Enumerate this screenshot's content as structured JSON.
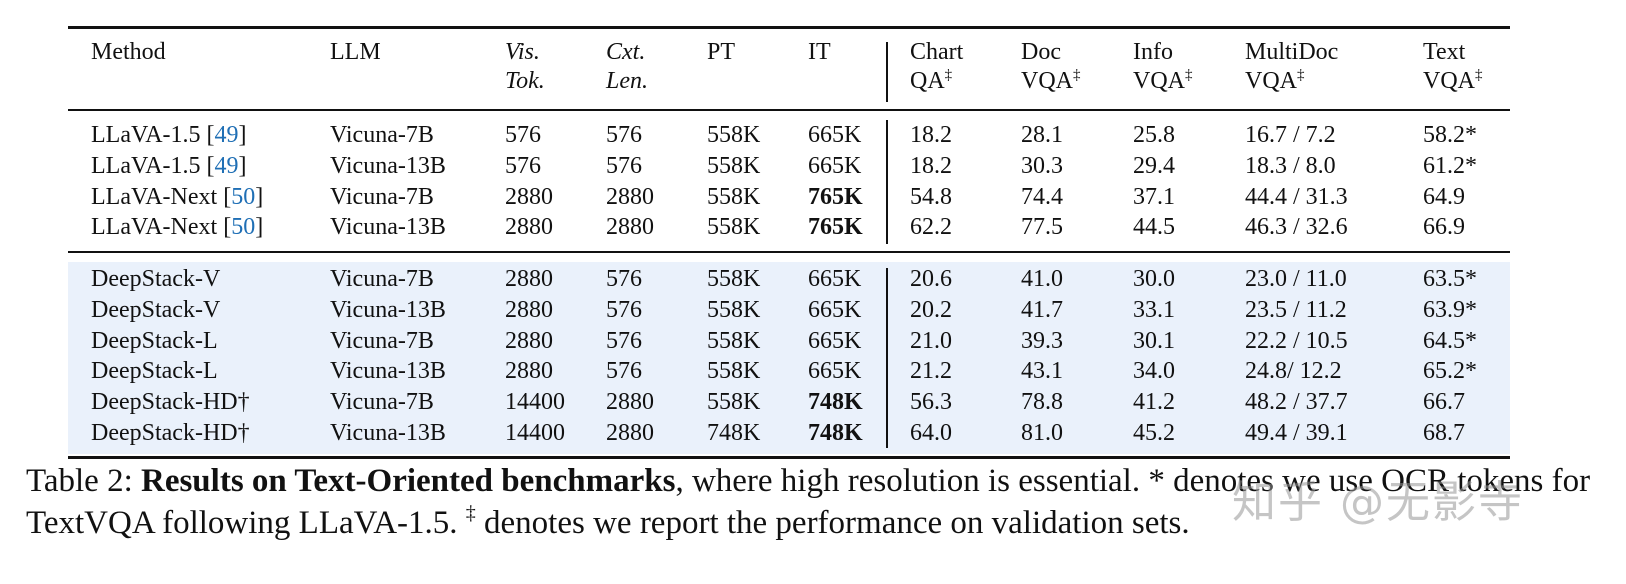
{
  "table": {
    "headers": {
      "method": "Method",
      "llm": "LLM",
      "vis_tok_1": "Vis.",
      "vis_tok_2": "Tok.",
      "cxt_len_1": "Cxt.",
      "cxt_len_2": "Len.",
      "pt": "PT",
      "it": "IT",
      "chartqa_1": "Chart",
      "chartqa_2": "QA",
      "docvqa_1": "Doc",
      "docvqa_2": "VQA",
      "infovqa_1": "Info",
      "infovqa_2": "VQA",
      "multidocvqa_1": "MultiDoc",
      "multidocvqa_2": "VQA",
      "textvqa_1": "Text",
      "textvqa_2": "VQA",
      "dagger_mark": "‡"
    },
    "baseline_rows": [
      {
        "method": "LLaVA-1.5 ",
        "cite": "49",
        "llm": "Vicuna-7B",
        "vis_tok": "576",
        "cxt_len": "576",
        "pt": "558K",
        "it": "665K",
        "it_bold": false,
        "chartqa": "18.2",
        "docvqa": "28.1",
        "infovqa": "25.8",
        "multidocvqa": "16.7 / 7.2",
        "textvqa": "58.2*"
      },
      {
        "method": "LLaVA-1.5 ",
        "cite": "49",
        "llm": "Vicuna-13B",
        "vis_tok": "576",
        "cxt_len": "576",
        "pt": "558K",
        "it": "665K",
        "it_bold": false,
        "chartqa": "18.2",
        "docvqa": "30.3",
        "infovqa": "29.4",
        "multidocvqa": "18.3 / 8.0",
        "textvqa": "61.2*"
      },
      {
        "method": "LLaVA-Next ",
        "cite": "50",
        "llm": "Vicuna-7B",
        "vis_tok": "2880",
        "cxt_len": "2880",
        "pt": "558K",
        "it": "765K",
        "it_bold": true,
        "chartqa": "54.8",
        "docvqa": "74.4",
        "infovqa": "37.1",
        "multidocvqa": "44.4 / 31.3",
        "textvqa": "64.9"
      },
      {
        "method": "LLaVA-Next ",
        "cite": "50",
        "llm": "Vicuna-13B",
        "vis_tok": "2880",
        "cxt_len": "2880",
        "pt": "558K",
        "it": "765K",
        "it_bold": true,
        "chartqa": "62.2",
        "docvqa": "77.5",
        "infovqa": "44.5",
        "multidocvqa": "46.3 / 32.6",
        "textvqa": "66.9"
      }
    ],
    "deepstack_rows": [
      {
        "method": "DeepStack-V",
        "llm": "Vicuna-7B",
        "vis_tok": "2880",
        "cxt_len": "576",
        "pt": "558K",
        "it": "665K",
        "it_bold": false,
        "chartqa": "20.6",
        "docvqa": "41.0",
        "infovqa": "30.0",
        "multidocvqa": "23.0 / 11.0",
        "textvqa": "63.5*"
      },
      {
        "method": "DeepStack-V",
        "llm": "Vicuna-13B",
        "vis_tok": "2880",
        "cxt_len": "576",
        "pt": "558K",
        "it": "665K",
        "it_bold": false,
        "chartqa": "20.2",
        "docvqa": "41.7",
        "infovqa": "33.1",
        "multidocvqa": "23.5 / 11.2",
        "textvqa": "63.9*"
      },
      {
        "method": "DeepStack-L",
        "llm": "Vicuna-7B",
        "vis_tok": "2880",
        "cxt_len": "576",
        "pt": "558K",
        "it": "665K",
        "it_bold": false,
        "chartqa": "21.0",
        "docvqa": "39.3",
        "infovqa": "30.1",
        "multidocvqa": "22.2 / 10.5",
        "textvqa": "64.5*"
      },
      {
        "method": "DeepStack-L",
        "llm": "Vicuna-13B",
        "vis_tok": "2880",
        "cxt_len": "576",
        "pt": "558K",
        "it": "665K",
        "it_bold": false,
        "chartqa": "21.2",
        "docvqa": "43.1",
        "infovqa": "34.0",
        "multidocvqa": "24.8/ 12.2",
        "textvqa": "65.2*"
      },
      {
        "method": "DeepStack-HD†",
        "llm": "Vicuna-7B",
        "vis_tok": "14400",
        "cxt_len": "2880",
        "pt": "558K",
        "it": "748K",
        "it_bold": true,
        "chartqa": "56.3",
        "docvqa": "78.8",
        "infovqa": "41.2",
        "multidocvqa": "48.2 / 37.7",
        "textvqa": "66.7"
      },
      {
        "method": "DeepStack-HD†",
        "llm": "Vicuna-13B",
        "vis_tok": "14400",
        "cxt_len": "2880",
        "pt": "748K",
        "it": "748K",
        "it_bold": true,
        "chartqa": "64.0",
        "docvqa": "81.0",
        "infovqa": "45.2",
        "multidocvqa": "49.4 / 39.1",
        "textvqa": "68.7"
      }
    ]
  },
  "caption": {
    "label": "Table 2: ",
    "bold_title": "Results on Text-Oriented benchmarks",
    "text_1": ", where high resolution is essential. * denotes we use OCR tokens for TextVQA following LLaVA-1.5. ",
    "dagger": "‡",
    "text_2": " denotes we report the performance on validation sets."
  },
  "watermark": {
    "text": "知乎 @无影寺"
  },
  "colors": {
    "highlight_bg": "#eaf1fb",
    "citation": "#1f6fb5",
    "rule": "#111111"
  }
}
